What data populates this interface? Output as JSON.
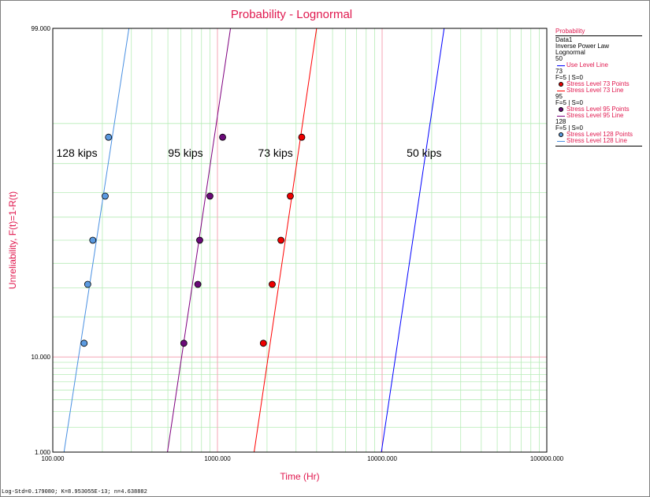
{
  "window": {
    "status_text": "Log-Std=0.179080; K=8.953055E-13; n=4.638882"
  },
  "legend": {
    "header": "Probability",
    "dataset": "Data1",
    "model": "Inverse Power Law",
    "distribution": "Lognormal",
    "groups": [
      {
        "stress": "50",
        "stats": "",
        "points_label": "",
        "line_label": "Use Level Line",
        "color": "#0000ff",
        "point_color": ""
      },
      {
        "stress": "73",
        "stats": "F=5 | S=0",
        "points_label": "Stress Level 73 Points",
        "line_label": "Stress Level 73 Line",
        "color": "#ff0000",
        "point_color": "#ee0000"
      },
      {
        "stress": "95",
        "stats": "F=5 | S=0",
        "points_label": "Stress Level 95 Points",
        "line_label": "Stress Level 95 Line",
        "color": "#800080",
        "point_color": "#6a0a78"
      },
      {
        "stress": "128",
        "stats": "F=5 | S=0",
        "points_label": "Stress Level 128 Points",
        "line_label": "Stress Level 128 Line",
        "color": "#4a90e2",
        "point_color": "#5b9ae0"
      }
    ]
  },
  "chart_data": {
    "type": "scatter",
    "title": "Probability - Lognormal",
    "xlabel": "Time (Hr)",
    "ylabel": "Unreliability, F(t)=1-R(t)",
    "x_scale": "log",
    "y_scale": "lognormal probability",
    "xlim": [
      100,
      100000
    ],
    "ylim": [
      1,
      99
    ],
    "x_tick_labels": [
      "100.000",
      "1000.000",
      "10000.000",
      "100000.000"
    ],
    "x_ticks": [
      100,
      1000,
      10000,
      100000
    ],
    "y_tick_labels": [
      "1.000",
      "10.000",
      "99.000"
    ],
    "y_ticks": [
      1,
      10,
      99
    ],
    "grid": true,
    "legend_position": "right",
    "annotations": [
      {
        "text": "128 kips",
        "x": 140,
        "y": 82
      },
      {
        "text": "95 kips",
        "x": 640,
        "y": 82
      },
      {
        "text": "73 kips",
        "x": 2250,
        "y": 82
      },
      {
        "text": "50 kips",
        "x": 18000,
        "y": 82
      }
    ],
    "series": [
      {
        "name": "Stress Level 128 Points",
        "color": "#5b9ae0",
        "points": [
          {
            "x": 155,
            "y": 12.9
          },
          {
            "x": 163,
            "y": 31.4
          },
          {
            "x": 175,
            "y": 50.0
          },
          {
            "x": 208,
            "y": 68.6
          },
          {
            "x": 218,
            "y": 87.1
          }
        ]
      },
      {
        "name": "Stress Level 95 Points",
        "color": "#6a0a78",
        "points": [
          {
            "x": 625,
            "y": 12.9
          },
          {
            "x": 760,
            "y": 31.4
          },
          {
            "x": 780,
            "y": 50.0
          },
          {
            "x": 900,
            "y": 68.6
          },
          {
            "x": 1075,
            "y": 87.1
          }
        ]
      },
      {
        "name": "Stress Level 73 Points",
        "color": "#ee0000",
        "points": [
          {
            "x": 1900,
            "y": 12.9
          },
          {
            "x": 2150,
            "y": 31.4
          },
          {
            "x": 2430,
            "y": 50.0
          },
          {
            "x": 2770,
            "y": 68.6
          },
          {
            "x": 3250,
            "y": 87.1
          }
        ]
      }
    ],
    "lines": [
      {
        "name": "Stress Level 128 Line",
        "color": "#4a90e2",
        "points": [
          {
            "x": 117,
            "y": 1
          },
          {
            "x": 290,
            "y": 99
          }
        ]
      },
      {
        "name": "Stress Level 95 Line",
        "color": "#800080",
        "points": [
          {
            "x": 497,
            "y": 1
          },
          {
            "x": 1200,
            "y": 99
          }
        ]
      },
      {
        "name": "Stress Level 73 Line",
        "color": "#ff0000",
        "points": [
          {
            "x": 1670,
            "y": 1
          },
          {
            "x": 4000,
            "y": 99
          }
        ]
      },
      {
        "name": "Use Level Line",
        "color": "#0000ff",
        "points": [
          {
            "x": 9900,
            "y": 1
          },
          {
            "x": 23800,
            "y": 99
          }
        ]
      }
    ]
  }
}
